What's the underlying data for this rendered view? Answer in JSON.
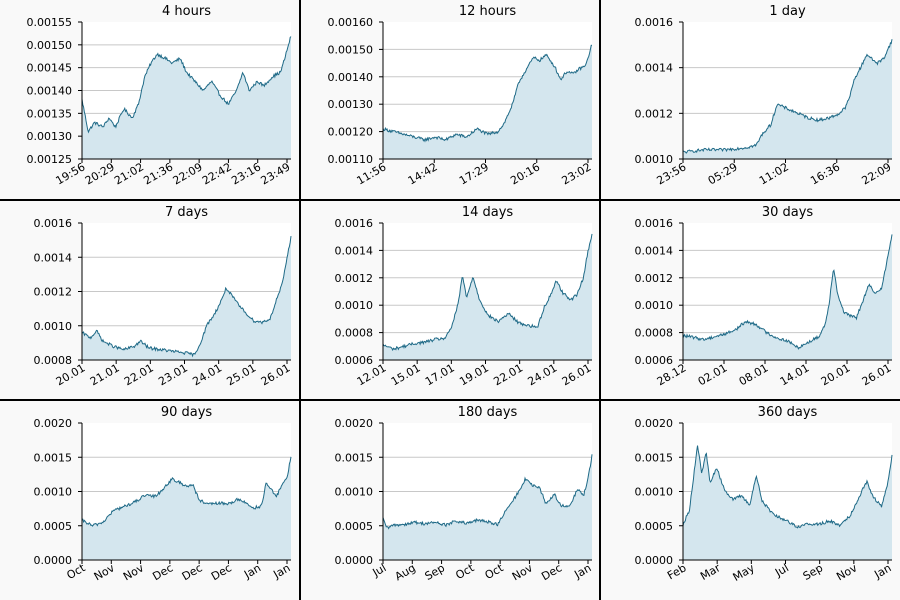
{
  "chart_data": [
    {
      "type": "area",
      "title": "4 hours",
      "x_ticks": [
        "19:56",
        "20:29",
        "21:02",
        "21:36",
        "22:09",
        "22:42",
        "23:16",
        "23:49"
      ],
      "y_ticks": [
        "0.00125",
        "0.00130",
        "0.00135",
        "0.00140",
        "0.00145",
        "0.00150",
        "0.00155"
      ],
      "ylim": [
        0.00125,
        0.00155
      ],
      "grid": true,
      "keypoints": [
        [
          0,
          0.00138
        ],
        [
          0.03,
          0.00131
        ],
        [
          0.06,
          0.00133
        ],
        [
          0.1,
          0.00132
        ],
        [
          0.13,
          0.00134
        ],
        [
          0.16,
          0.00132
        ],
        [
          0.2,
          0.00136
        ],
        [
          0.24,
          0.00134
        ],
        [
          0.27,
          0.00137
        ],
        [
          0.3,
          0.00143
        ],
        [
          0.33,
          0.00146
        ],
        [
          0.36,
          0.00148
        ],
        [
          0.4,
          0.00147
        ],
        [
          0.43,
          0.00146
        ],
        [
          0.47,
          0.00147
        ],
        [
          0.5,
          0.00144
        ],
        [
          0.54,
          0.00142
        ],
        [
          0.58,
          0.0014
        ],
        [
          0.62,
          0.00142
        ],
        [
          0.66,
          0.00139
        ],
        [
          0.7,
          0.00137
        ],
        [
          0.74,
          0.0014
        ],
        [
          0.77,
          0.00144
        ],
        [
          0.8,
          0.0014
        ],
        [
          0.84,
          0.00142
        ],
        [
          0.87,
          0.00141
        ],
        [
          0.91,
          0.00143
        ],
        [
          0.95,
          0.00144
        ],
        [
          0.97,
          0.00147
        ],
        [
          1,
          0.00152
        ]
      ]
    },
    {
      "type": "area",
      "title": "12 hours",
      "x_ticks": [
        "11:56",
        "14:42",
        "17:29",
        "20:16",
        "23:02"
      ],
      "y_ticks": [
        "0.00110",
        "0.00120",
        "0.00130",
        "0.00140",
        "0.00150",
        "0.00160"
      ],
      "ylim": [
        0.0011,
        0.0016
      ],
      "grid": true,
      "keypoints": [
        [
          0,
          0.00121
        ],
        [
          0.05,
          0.0012
        ],
        [
          0.1,
          0.00119
        ],
        [
          0.15,
          0.00118
        ],
        [
          0.2,
          0.00117
        ],
        [
          0.25,
          0.00118
        ],
        [
          0.3,
          0.00117
        ],
        [
          0.35,
          0.00119
        ],
        [
          0.4,
          0.00118
        ],
        [
          0.45,
          0.00121
        ],
        [
          0.5,
          0.00119
        ],
        [
          0.55,
          0.0012
        ],
        [
          0.58,
          0.00123
        ],
        [
          0.62,
          0.0013
        ],
        [
          0.65,
          0.00138
        ],
        [
          0.68,
          0.00142
        ],
        [
          0.72,
          0.00147
        ],
        [
          0.75,
          0.00146
        ],
        [
          0.78,
          0.00148
        ],
        [
          0.82,
          0.00144
        ],
        [
          0.85,
          0.00139
        ],
        [
          0.88,
          0.00142
        ],
        [
          0.91,
          0.00141
        ],
        [
          0.94,
          0.00143
        ],
        [
          0.97,
          0.00144
        ],
        [
          1,
          0.00152
        ]
      ]
    },
    {
      "type": "area",
      "title": "1 day",
      "x_ticks": [
        "23:56",
        "05:29",
        "11:02",
        "16:36",
        "22:09"
      ],
      "y_ticks": [
        "0.0010",
        "0.0012",
        "0.0014",
        "0.0016"
      ],
      "ylim": [
        0.001,
        0.0016
      ],
      "grid": true,
      "keypoints": [
        [
          0,
          0.00103
        ],
        [
          0.1,
          0.00104
        ],
        [
          0.2,
          0.00104
        ],
        [
          0.3,
          0.00105
        ],
        [
          0.35,
          0.00106
        ],
        [
          0.38,
          0.00111
        ],
        [
          0.42,
          0.00115
        ],
        [
          0.45,
          0.00124
        ],
        [
          0.5,
          0.00122
        ],
        [
          0.55,
          0.0012
        ],
        [
          0.6,
          0.00118
        ],
        [
          0.65,
          0.00117
        ],
        [
          0.7,
          0.00118
        ],
        [
          0.75,
          0.0012
        ],
        [
          0.78,
          0.00123
        ],
        [
          0.8,
          0.00128
        ],
        [
          0.82,
          0.00135
        ],
        [
          0.85,
          0.0014
        ],
        [
          0.88,
          0.00146
        ],
        [
          0.9,
          0.00144
        ],
        [
          0.93,
          0.00142
        ],
        [
          0.96,
          0.00144
        ],
        [
          1,
          0.00152
        ]
      ]
    },
    {
      "type": "area",
      "title": "7 days",
      "x_ticks": [
        "20.01",
        "21.01",
        "22.01",
        "23.01",
        "24.01",
        "25.01",
        "26.01"
      ],
      "y_ticks": [
        "0.0008",
        "0.0010",
        "0.0012",
        "0.0014",
        "0.0016"
      ],
      "ylim": [
        0.0008,
        0.0016
      ],
      "grid": true,
      "keypoints": [
        [
          0,
          0.00096
        ],
        [
          0.04,
          0.00093
        ],
        [
          0.07,
          0.00097
        ],
        [
          0.1,
          0.00091
        ],
        [
          0.15,
          0.00088
        ],
        [
          0.2,
          0.00086
        ],
        [
          0.25,
          0.00088
        ],
        [
          0.28,
          0.00091
        ],
        [
          0.32,
          0.00087
        ],
        [
          0.38,
          0.00086
        ],
        [
          0.44,
          0.00085
        ],
        [
          0.5,
          0.00084
        ],
        [
          0.54,
          0.00083
        ],
        [
          0.57,
          0.00091
        ],
        [
          0.6,
          0.00101
        ],
        [
          0.63,
          0.00106
        ],
        [
          0.66,
          0.00113
        ],
        [
          0.69,
          0.00122
        ],
        [
          0.72,
          0.00117
        ],
        [
          0.75,
          0.00112
        ],
        [
          0.78,
          0.00108
        ],
        [
          0.82,
          0.00103
        ],
        [
          0.86,
          0.00102
        ],
        [
          0.9,
          0.00104
        ],
        [
          0.93,
          0.00115
        ],
        [
          0.96,
          0.00125
        ],
        [
          0.98,
          0.00139
        ],
        [
          1,
          0.00152
        ]
      ]
    },
    {
      "type": "area",
      "title": "14 days",
      "x_ticks": [
        "12.01",
        "15.01",
        "17.01",
        "19.01",
        "22.01",
        "24.01",
        "26.01"
      ],
      "y_ticks": [
        "0.0006",
        "0.0008",
        "0.0010",
        "0.0012",
        "0.0014",
        "0.0016"
      ],
      "ylim": [
        0.0006,
        0.0016
      ],
      "grid": true,
      "keypoints": [
        [
          0,
          0.00071
        ],
        [
          0.05,
          0.00068
        ],
        [
          0.1,
          0.0007
        ],
        [
          0.15,
          0.00072
        ],
        [
          0.2,
          0.00073
        ],
        [
          0.25,
          0.00075
        ],
        [
          0.3,
          0.00076
        ],
        [
          0.33,
          0.00085
        ],
        [
          0.36,
          0.00101
        ],
        [
          0.38,
          0.00122
        ],
        [
          0.4,
          0.00105
        ],
        [
          0.43,
          0.00121
        ],
        [
          0.46,
          0.00105
        ],
        [
          0.5,
          0.00093
        ],
        [
          0.55,
          0.00088
        ],
        [
          0.6,
          0.00094
        ],
        [
          0.65,
          0.00087
        ],
        [
          0.7,
          0.00085
        ],
        [
          0.74,
          0.00084
        ],
        [
          0.77,
          0.00098
        ],
        [
          0.8,
          0.00107
        ],
        [
          0.83,
          0.00118
        ],
        [
          0.86,
          0.00109
        ],
        [
          0.9,
          0.00104
        ],
        [
          0.93,
          0.00108
        ],
        [
          0.96,
          0.00121
        ],
        [
          0.98,
          0.00139
        ],
        [
          1,
          0.00152
        ]
      ]
    },
    {
      "type": "area",
      "title": "30 days",
      "x_ticks": [
        "28.12",
        "02.01",
        "08.01",
        "14.01",
        "20.01",
        "26.01"
      ],
      "y_ticks": [
        "0.0006",
        "0.0008",
        "0.0010",
        "0.0012",
        "0.0014",
        "0.0016"
      ],
      "ylim": [
        0.0006,
        0.0016
      ],
      "grid": true,
      "keypoints": [
        [
          0,
          0.00078
        ],
        [
          0.1,
          0.00075
        ],
        [
          0.15,
          0.00077
        ],
        [
          0.2,
          0.00079
        ],
        [
          0.25,
          0.00082
        ],
        [
          0.3,
          0.00088
        ],
        [
          0.35,
          0.00086
        ],
        [
          0.4,
          0.0008
        ],
        [
          0.45,
          0.00076
        ],
        [
          0.5,
          0.00074
        ],
        [
          0.55,
          0.00069
        ],
        [
          0.6,
          0.00073
        ],
        [
          0.65,
          0.00077
        ],
        [
          0.68,
          0.00086
        ],
        [
          0.7,
          0.00102
        ],
        [
          0.72,
          0.00128
        ],
        [
          0.74,
          0.00108
        ],
        [
          0.77,
          0.00095
        ],
        [
          0.8,
          0.00092
        ],
        [
          0.83,
          0.00091
        ],
        [
          0.86,
          0.00103
        ],
        [
          0.89,
          0.00115
        ],
        [
          0.92,
          0.00108
        ],
        [
          0.95,
          0.00113
        ],
        [
          0.98,
          0.00135
        ],
        [
          1,
          0.00152
        ]
      ]
    },
    {
      "type": "area",
      "title": "90 days",
      "x_ticks": [
        "Oct",
        "Nov",
        "Nov",
        "Dec",
        "Dec",
        "Dec",
        "Jan",
        "Jan"
      ],
      "y_ticks": [
        "0.0000",
        "0.0005",
        "0.0010",
        "0.0015",
        "0.0020"
      ],
      "ylim": [
        0,
        0.002
      ],
      "grid": true,
      "keypoints": [
        [
          0,
          0.00058
        ],
        [
          0.05,
          0.0005
        ],
        [
          0.1,
          0.00055
        ],
        [
          0.15,
          0.00072
        ],
        [
          0.2,
          0.00078
        ],
        [
          0.25,
          0.00084
        ],
        [
          0.3,
          0.00094
        ],
        [
          0.35,
          0.00093
        ],
        [
          0.38,
          0.00101
        ],
        [
          0.4,
          0.00108
        ],
        [
          0.43,
          0.00118
        ],
        [
          0.46,
          0.00114
        ],
        [
          0.5,
          0.00108
        ],
        [
          0.53,
          0.0011
        ],
        [
          0.56,
          0.00088
        ],
        [
          0.6,
          0.00081
        ],
        [
          0.65,
          0.00083
        ],
        [
          0.7,
          0.00082
        ],
        [
          0.75,
          0.00089
        ],
        [
          0.78,
          0.00084
        ],
        [
          0.82,
          0.00076
        ],
        [
          0.86,
          0.00079
        ],
        [
          0.88,
          0.00112
        ],
        [
          0.9,
          0.00105
        ],
        [
          0.93,
          0.00092
        ],
        [
          0.96,
          0.00113
        ],
        [
          0.98,
          0.00118
        ],
        [
          1,
          0.00152
        ]
      ]
    },
    {
      "type": "area",
      "title": "180 days",
      "x_ticks": [
        "Jul",
        "Aug",
        "Sep",
        "Oct",
        "Oct",
        "Nov",
        "Dec",
        "Jan"
      ],
      "y_ticks": [
        "0.0000",
        "0.0005",
        "0.0010",
        "0.0015",
        "0.0020"
      ],
      "ylim": [
        0,
        0.002
      ],
      "grid": true,
      "keypoints": [
        [
          0,
          0.0006
        ],
        [
          0.02,
          0.00046
        ],
        [
          0.05,
          0.00051
        ],
        [
          0.1,
          0.00052
        ],
        [
          0.15,
          0.00055
        ],
        [
          0.2,
          0.00053
        ],
        [
          0.25,
          0.00055
        ],
        [
          0.3,
          0.00051
        ],
        [
          0.35,
          0.00057
        ],
        [
          0.4,
          0.00053
        ],
        [
          0.45,
          0.00058
        ],
        [
          0.5,
          0.00056
        ],
        [
          0.55,
          0.00052
        ],
        [
          0.58,
          0.00068
        ],
        [
          0.62,
          0.00086
        ],
        [
          0.65,
          0.001
        ],
        [
          0.68,
          0.00118
        ],
        [
          0.72,
          0.00108
        ],
        [
          0.75,
          0.00105
        ],
        [
          0.78,
          0.00082
        ],
        [
          0.82,
          0.00096
        ],
        [
          0.85,
          0.0008
        ],
        [
          0.88,
          0.00077
        ],
        [
          0.9,
          0.00082
        ],
        [
          0.93,
          0.00103
        ],
        [
          0.96,
          0.00095
        ],
        [
          0.98,
          0.00117
        ],
        [
          1,
          0.00152
        ]
      ]
    },
    {
      "type": "area",
      "title": "360 days",
      "x_ticks": [
        "Feb",
        "Mar",
        "May",
        "Jul",
        "Sep",
        "Nov",
        "Jan"
      ],
      "y_ticks": [
        "0.0000",
        "0.0005",
        "0.0010",
        "0.0015",
        "0.0020"
      ],
      "ylim": [
        0,
        0.002
      ],
      "grid": true,
      "keypoints": [
        [
          0,
          0.00052
        ],
        [
          0.03,
          0.00072
        ],
        [
          0.05,
          0.0012
        ],
        [
          0.07,
          0.00168
        ],
        [
          0.09,
          0.00125
        ],
        [
          0.11,
          0.00158
        ],
        [
          0.13,
          0.00112
        ],
        [
          0.16,
          0.00135
        ],
        [
          0.2,
          0.00102
        ],
        [
          0.24,
          0.00088
        ],
        [
          0.28,
          0.00094
        ],
        [
          0.32,
          0.0008
        ],
        [
          0.35,
          0.00124
        ],
        [
          0.38,
          0.00085
        ],
        [
          0.42,
          0.00071
        ],
        [
          0.46,
          0.00062
        ],
        [
          0.5,
          0.00057
        ],
        [
          0.55,
          0.00048
        ],
        [
          0.6,
          0.00053
        ],
        [
          0.65,
          0.00052
        ],
        [
          0.7,
          0.00057
        ],
        [
          0.75,
          0.00051
        ],
        [
          0.8,
          0.00065
        ],
        [
          0.85,
          0.00097
        ],
        [
          0.88,
          0.00115
        ],
        [
          0.91,
          0.00092
        ],
        [
          0.95,
          0.00078
        ],
        [
          0.98,
          0.00112
        ],
        [
          1,
          0.00152
        ]
      ]
    }
  ],
  "colors": {
    "line": "#1f6a87",
    "fill": "#d4e6ee",
    "grid": "#c8c8c8",
    "panel_bg": "#f9f9f9",
    "plot_bg": "#ffffff"
  }
}
